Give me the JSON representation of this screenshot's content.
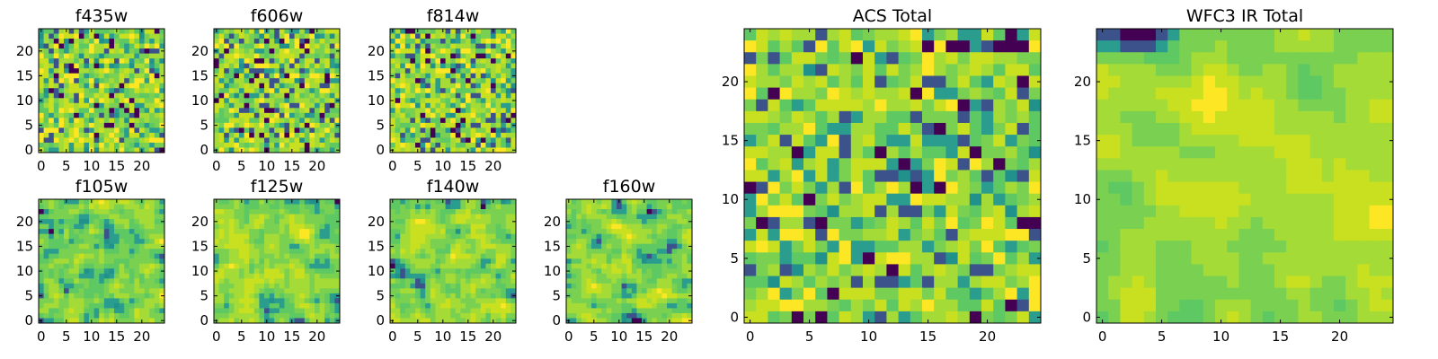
{
  "figure": {
    "description_free": true
  },
  "palette": [
    "#440154",
    "#3b528b",
    "#21918c",
    "#2a9d8f",
    "#5ec962",
    "#7ad151",
    "#a5db36",
    "#c8e020",
    "#fde725"
  ],
  "chart_data": [
    {
      "id": "f435w",
      "type": "heatmap",
      "title": "f435w",
      "grid_size": 25,
      "xticks": [
        "0",
        "5",
        "10",
        "15",
        "20"
      ],
      "yticks": [
        "0",
        "5",
        "10",
        "15",
        "20"
      ],
      "seed": 11,
      "smoothness": 0,
      "bias": 0.62
    },
    {
      "id": "f606w",
      "type": "heatmap",
      "title": "f606w",
      "grid_size": 25,
      "xticks": [
        "0",
        "5",
        "10",
        "15",
        "20"
      ],
      "yticks": [
        "0",
        "5",
        "10",
        "15",
        "20"
      ],
      "seed": 23,
      "smoothness": 0,
      "bias": 0.66
    },
    {
      "id": "f814w",
      "type": "heatmap",
      "title": "f814w",
      "grid_size": 25,
      "xticks": [
        "0",
        "5",
        "10",
        "15",
        "20"
      ],
      "yticks": [
        "0",
        "5",
        "10",
        "15",
        "20"
      ],
      "seed": 37,
      "smoothness": 0,
      "bias": 0.66
    },
    {
      "id": "f105w",
      "type": "heatmap",
      "title": "f105w",
      "grid_size": 25,
      "xticks": [
        "0",
        "5",
        "10",
        "15",
        "20"
      ],
      "yticks": [
        "0",
        "5",
        "10",
        "15",
        "20"
      ],
      "seed": 41,
      "smoothness": 1,
      "bias": 0.64
    },
    {
      "id": "f125w",
      "type": "heatmap",
      "title": "f125w",
      "grid_size": 25,
      "xticks": [
        "0",
        "5",
        "10",
        "15",
        "20"
      ],
      "yticks": [
        "0",
        "5",
        "10",
        "15",
        "20"
      ],
      "seed": 53,
      "smoothness": 1,
      "bias": 0.64
    },
    {
      "id": "f140w",
      "type": "heatmap",
      "title": "f140w",
      "grid_size": 25,
      "xticks": [
        "0",
        "5",
        "10",
        "15",
        "20"
      ],
      "yticks": [
        "0",
        "5",
        "10",
        "15",
        "20"
      ],
      "seed": 67,
      "smoothness": 1,
      "bias": 0.64
    },
    {
      "id": "f160w",
      "type": "heatmap",
      "title": "f160w",
      "grid_size": 25,
      "xticks": [
        "0",
        "5",
        "10",
        "15",
        "20"
      ],
      "yticks": [
        "0",
        "5",
        "10",
        "15",
        "20"
      ],
      "seed": 71,
      "smoothness": 1,
      "bias": 0.62
    },
    {
      "id": "acs-total",
      "type": "heatmap",
      "title": "ACS Total",
      "grid_size": 25,
      "xticks": [
        "0",
        "5",
        "10",
        "15",
        "20"
      ],
      "yticks": [
        "0",
        "5",
        "10",
        "15",
        "20"
      ],
      "seed": 83,
      "smoothness": 0,
      "bias": 0.68
    },
    {
      "id": "wfc3-ir-total",
      "type": "heatmap",
      "title": "WFC3 IR Total",
      "grid_size": 25,
      "xticks": [
        "0",
        "5",
        "10",
        "15",
        "20"
      ],
      "yticks": [
        "0",
        "5",
        "10",
        "15",
        "20"
      ],
      "seed": 97,
      "smoothness": 2,
      "bias": 0.66
    }
  ]
}
